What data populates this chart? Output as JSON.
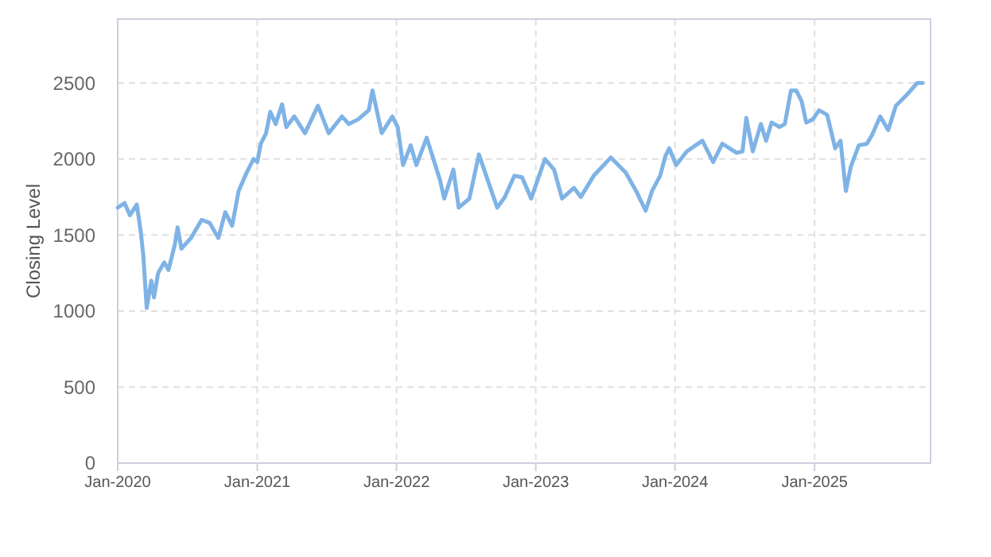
{
  "chart_data": {
    "type": "line",
    "ylabel": "Closing Level",
    "xlim": [
      "2020-01-01",
      "2025-11-01"
    ],
    "ylim": [
      0,
      2920
    ],
    "yticks": [
      0,
      500,
      1000,
      1500,
      2000,
      2500
    ],
    "xticks": [
      {
        "value": "2020-01-01",
        "label": "Jan-2020"
      },
      {
        "value": "2021-01-01",
        "label": "Jan-2021"
      },
      {
        "value": "2022-01-01",
        "label": "Jan-2022"
      },
      {
        "value": "2023-01-01",
        "label": "Jan-2023"
      },
      {
        "value": "2024-01-01",
        "label": "Jan-2024"
      },
      {
        "value": "2025-01-01",
        "label": "Jan-2025"
      }
    ],
    "grid": true,
    "marker": "none",
    "line_style": "solid",
    "x": [
      "2020-01-01",
      "2020-01-19",
      "2020-02-02",
      "2020-02-20",
      "2020-03-01",
      "2020-03-08",
      "2020-03-17",
      "2020-03-29",
      "2020-04-05",
      "2020-04-16",
      "2020-05-02",
      "2020-05-13",
      "2020-05-30",
      "2020-06-06",
      "2020-06-16",
      "2020-07-11",
      "2020-08-08",
      "2020-08-29",
      "2020-09-21",
      "2020-10-09",
      "2020-10-27",
      "2020-11-13",
      "2020-12-04",
      "2020-12-22",
      "2021-01-01",
      "2021-01-10",
      "2021-01-24",
      "2021-02-04",
      "2021-02-18",
      "2021-03-07",
      "2021-03-18",
      "2021-04-08",
      "2021-05-06",
      "2021-06-09",
      "2021-07-07",
      "2021-08-11",
      "2021-08-29",
      "2021-09-22",
      "2021-10-20",
      "2021-10-30",
      "2021-11-23",
      "2021-12-21",
      "2022-01-04",
      "2022-01-18",
      "2022-02-07",
      "2022-02-22",
      "2022-03-21",
      "2022-04-25",
      "2022-05-06",
      "2022-05-30",
      "2022-06-13",
      "2022-07-11",
      "2022-08-05",
      "2022-09-04",
      "2022-09-22",
      "2022-10-12",
      "2022-11-06",
      "2022-11-26",
      "2022-12-20",
      "2023-01-25",
      "2023-02-18",
      "2023-03-11",
      "2023-04-11",
      "2023-04-29",
      "2023-06-02",
      "2023-07-17",
      "2023-08-25",
      "2023-09-21",
      "2023-10-16",
      "2023-11-02",
      "2023-11-23",
      "2023-12-07",
      "2023-12-17",
      "2024-01-04",
      "2024-02-01",
      "2024-02-24",
      "2024-03-13",
      "2024-04-10",
      "2024-05-04",
      "2024-06-11",
      "2024-06-26",
      "2024-07-06",
      "2024-07-23",
      "2024-08-13",
      "2024-08-27",
      "2024-09-10",
      "2024-10-01",
      "2024-10-15",
      "2024-10-31",
      "2024-11-14",
      "2024-11-28",
      "2024-12-10",
      "2024-12-27",
      "2025-01-13",
      "2025-02-03",
      "2025-02-24",
      "2025-03-10",
      "2025-03-24",
      "2025-04-06",
      "2025-04-27",
      "2025-05-18",
      "2025-06-01",
      "2025-06-22",
      "2025-07-13",
      "2025-08-02",
      "2025-08-30",
      "2025-09-27",
      "2025-10-11"
    ],
    "series": [
      {
        "color": "#7fb3e6",
        "values": [
          1680,
          1710,
          1630,
          1700,
          1530,
          1370,
          1020,
          1200,
          1090,
          1250,
          1320,
          1270,
          1440,
          1550,
          1410,
          1480,
          1600,
          1580,
          1480,
          1650,
          1560,
          1790,
          1910,
          2000,
          1980,
          2100,
          2170,
          2310,
          2230,
          2360,
          2210,
          2280,
          2170,
          2350,
          2170,
          2280,
          2230,
          2260,
          2320,
          2450,
          2170,
          2280,
          2210,
          1960,
          2090,
          1960,
          2140,
          1860,
          1740,
          1930,
          1680,
          1740,
          2030,
          1810,
          1680,
          1750,
          1890,
          1880,
          1740,
          2000,
          1930,
          1740,
          1810,
          1750,
          1890,
          2010,
          1910,
          1790,
          1660,
          1790,
          1890,
          2020,
          2070,
          1960,
          2050,
          2090,
          2120,
          1980,
          2100,
          2040,
          2050,
          2270,
          2050,
          2230,
          2120,
          2240,
          2210,
          2230,
          2450,
          2450,
          2380,
          2240,
          2260,
          2320,
          2290,
          2070,
          2120,
          1790,
          1950,
          2090,
          2100,
          2160,
          2280,
          2190,
          2350,
          2420,
          2500,
          2500
        ]
      }
    ]
  }
}
